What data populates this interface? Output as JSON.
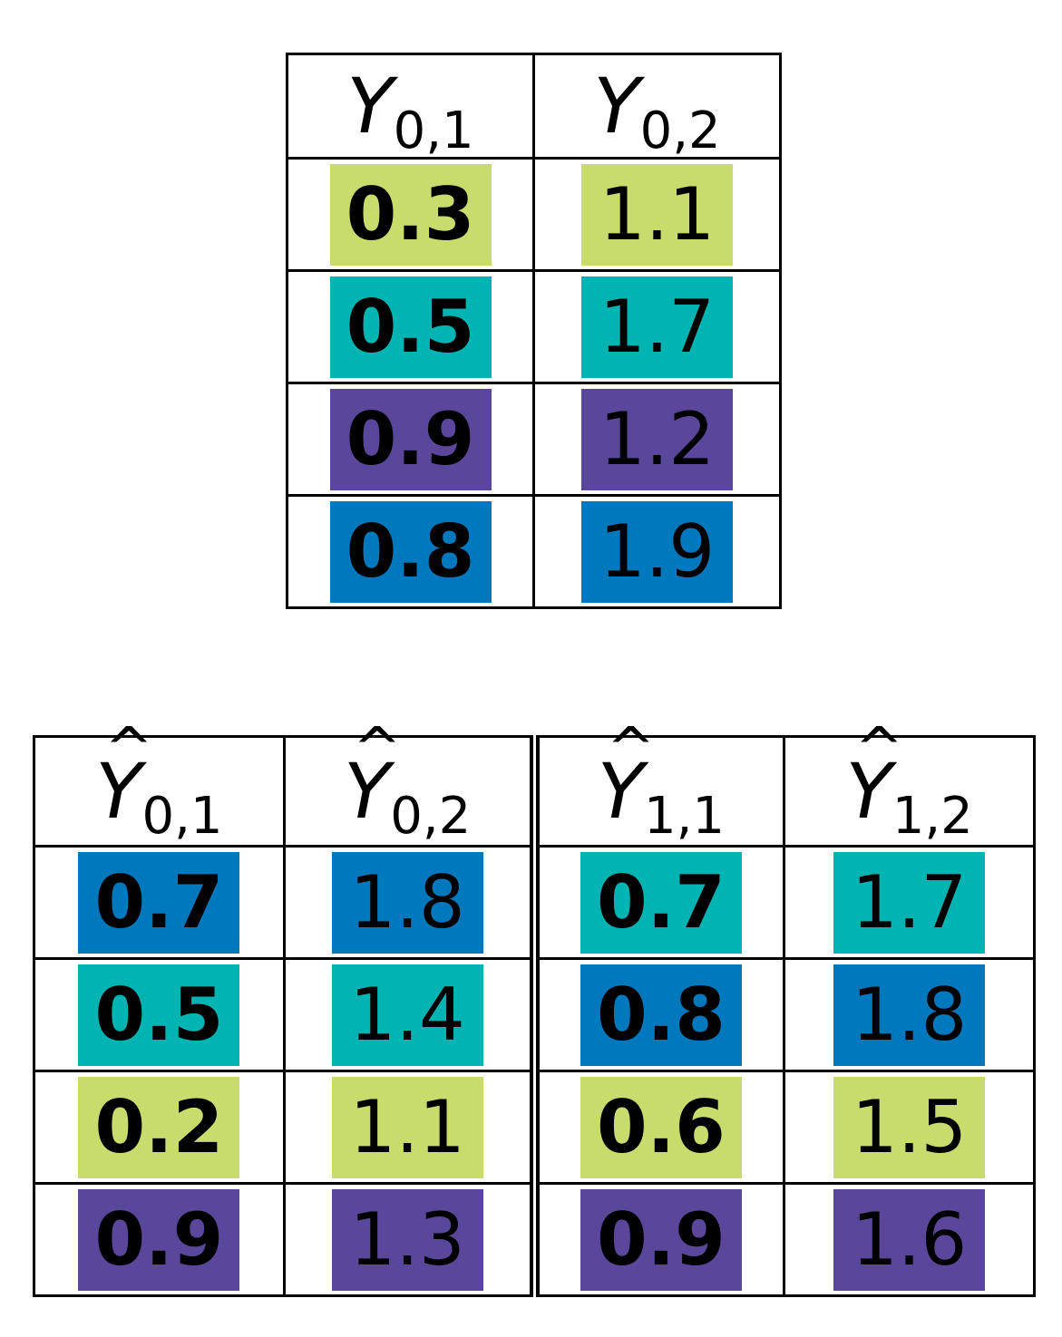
{
  "colors": {
    "lime": "#c8dc6e",
    "teal": "#00b4b4",
    "purple": "#5a479b",
    "blue": "#0078be"
  },
  "top_table": {
    "headers": [
      {
        "var": "Y",
        "sub": "0,1"
      },
      {
        "var": "Y",
        "sub": "0,2"
      }
    ],
    "rows": [
      {
        "c1": "0.3",
        "c2": "1.1",
        "color": "lime"
      },
      {
        "c1": "0.5",
        "c2": "1.7",
        "color": "teal"
      },
      {
        "c1": "0.9",
        "c2": "1.2",
        "color": "purple"
      },
      {
        "c1": "0.8",
        "c2": "1.9",
        "color": "blue"
      }
    ]
  },
  "bottom_table": {
    "hat_symbol": "^",
    "headers": [
      {
        "var": "Y",
        "sub": "0,1"
      },
      {
        "var": "Y",
        "sub": "0,2"
      },
      {
        "var": "Y",
        "sub": "1,1"
      },
      {
        "var": "Y",
        "sub": "1,2"
      }
    ],
    "rows": [
      {
        "c1": "0.7",
        "c2": "1.8",
        "left_color": "blue",
        "c3": "0.7",
        "c4": "1.7",
        "right_color": "teal"
      },
      {
        "c1": "0.5",
        "c2": "1.4",
        "left_color": "teal",
        "c3": "0.8",
        "c4": "1.8",
        "right_color": "blue"
      },
      {
        "c1": "0.2",
        "c2": "1.1",
        "left_color": "lime",
        "c3": "0.6",
        "c4": "1.5",
        "right_color": "lime"
      },
      {
        "c1": "0.9",
        "c2": "1.3",
        "left_color": "purple",
        "c3": "0.9",
        "c4": "1.6",
        "right_color": "purple"
      }
    ]
  }
}
